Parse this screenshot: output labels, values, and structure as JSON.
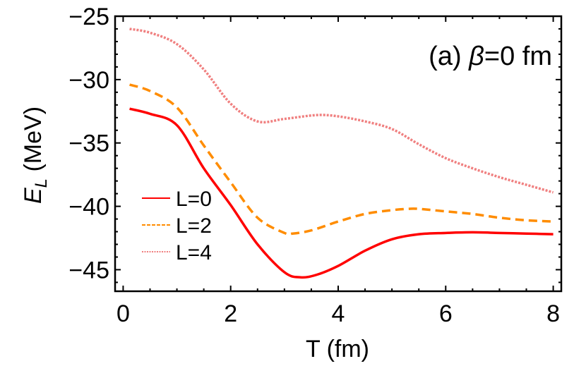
{
  "chart_data": {
    "type": "line",
    "title": "",
    "annotation": "(a) β=0 fm",
    "annotation_parts": {
      "prefix": "(a) ",
      "symbol": "β",
      "suffix": "=0 fm"
    },
    "xlabel": "T (fm)",
    "ylabel": {
      "main": "E",
      "subscript": "L",
      "unit": " (MeV)"
    },
    "xlim": [
      -0.15,
      8.15
    ],
    "ylim": [
      -46.7,
      -25.0
    ],
    "xticks": [
      0,
      2,
      4,
      6,
      8
    ],
    "yticks": [
      -25,
      -30,
      -35,
      -40,
      -45
    ],
    "xtick_labels": [
      "0",
      "2",
      "4",
      "6",
      "8"
    ],
    "ytick_labels": [
      "−25",
      "−30",
      "−35",
      "−40",
      "−45"
    ],
    "grid": false,
    "legend_position": "lower-left",
    "series": [
      {
        "name": "L=0",
        "color": "#ff0000",
        "style": "solid",
        "x": [
          0.12,
          0.5,
          1.0,
          1.5,
          2.0,
          2.5,
          3.0,
          3.3,
          3.6,
          4.0,
          4.5,
          5.0,
          5.5,
          6.0,
          6.5,
          7.0,
          7.5,
          8.0
        ],
        "y": [
          -32.3,
          -32.7,
          -33.6,
          -37.0,
          -39.9,
          -43.0,
          -45.2,
          -45.6,
          -45.4,
          -44.7,
          -43.5,
          -42.6,
          -42.2,
          -42.1,
          -42.05,
          -42.1,
          -42.15,
          -42.2
        ]
      },
      {
        "name": "L=2",
        "color": "#ff8c00",
        "style": "dashed",
        "x": [
          0.12,
          0.5,
          1.0,
          1.5,
          2.0,
          2.5,
          3.0,
          3.15,
          3.5,
          4.0,
          4.5,
          5.0,
          5.3,
          5.5,
          6.0,
          6.5,
          7.0,
          7.5,
          8.0
        ],
        "y": [
          -30.4,
          -30.9,
          -32.2,
          -35.2,
          -38.1,
          -40.9,
          -42.1,
          -42.15,
          -41.9,
          -41.2,
          -40.6,
          -40.3,
          -40.2,
          -40.2,
          -40.4,
          -40.6,
          -40.9,
          -41.1,
          -41.2
        ]
      },
      {
        "name": "L=4",
        "color": "#f08080",
        "style": "dotted",
        "x": [
          0.12,
          0.5,
          1.0,
          1.5,
          2.0,
          2.5,
          3.0,
          3.6,
          4.0,
          4.5,
          5.0,
          5.5,
          6.0,
          6.5,
          7.0,
          7.5,
          8.0
        ],
        "y": [
          -26.0,
          -26.3,
          -27.2,
          -29.2,
          -31.9,
          -33.3,
          -33.1,
          -32.8,
          -32.9,
          -33.3,
          -33.9,
          -35.1,
          -36.2,
          -37.0,
          -37.7,
          -38.3,
          -38.9
        ]
      }
    ]
  }
}
